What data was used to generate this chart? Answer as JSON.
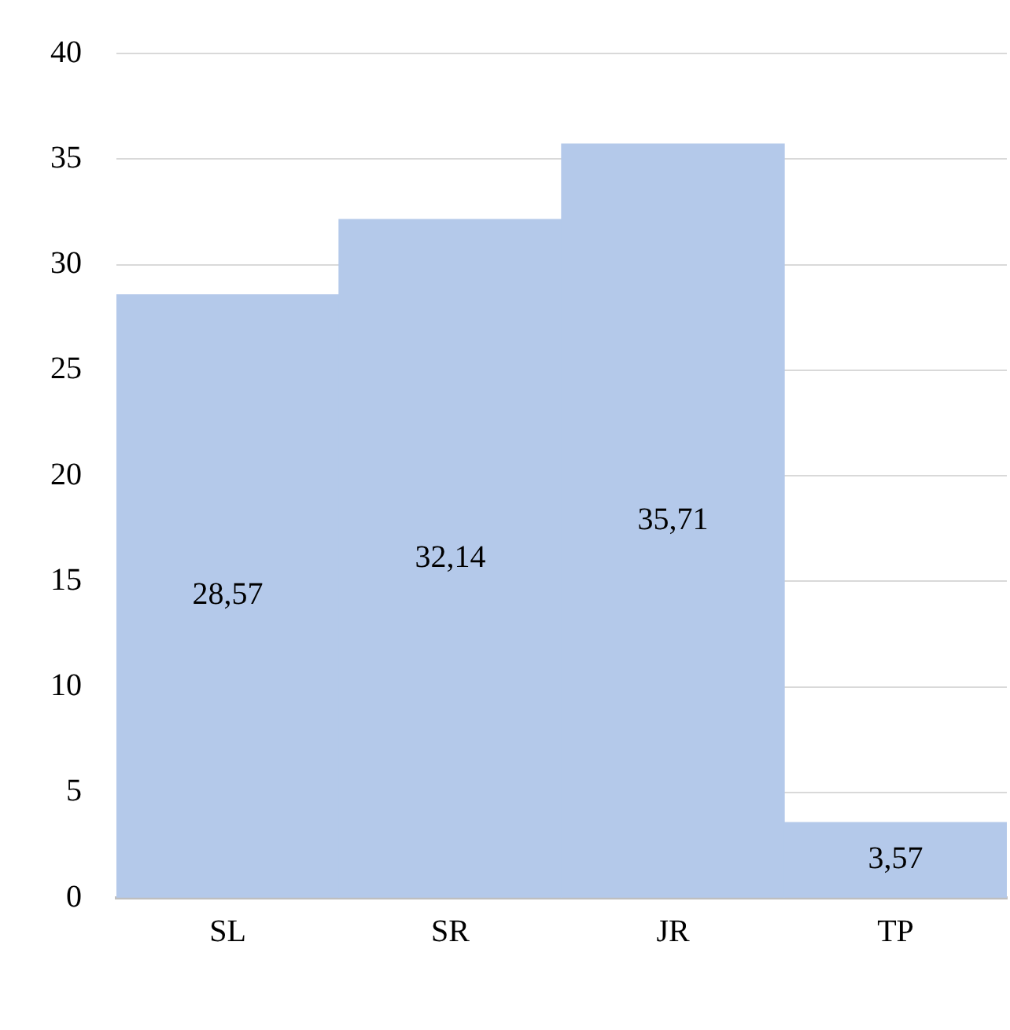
{
  "chart_data": {
    "type": "bar",
    "categories": [
      "SL",
      "SR",
      "JR",
      "TP"
    ],
    "values": [
      28.57,
      32.14,
      35.71,
      3.57
    ],
    "value_labels": [
      "28,57",
      "32,14",
      "35,71",
      "3,57"
    ],
    "color": "#b4c9ea",
    "ylim": [
      0,
      40
    ],
    "yticks": [
      0,
      5,
      10,
      15,
      20,
      25,
      30,
      35,
      40
    ],
    "grid": "y",
    "legend": false
  }
}
